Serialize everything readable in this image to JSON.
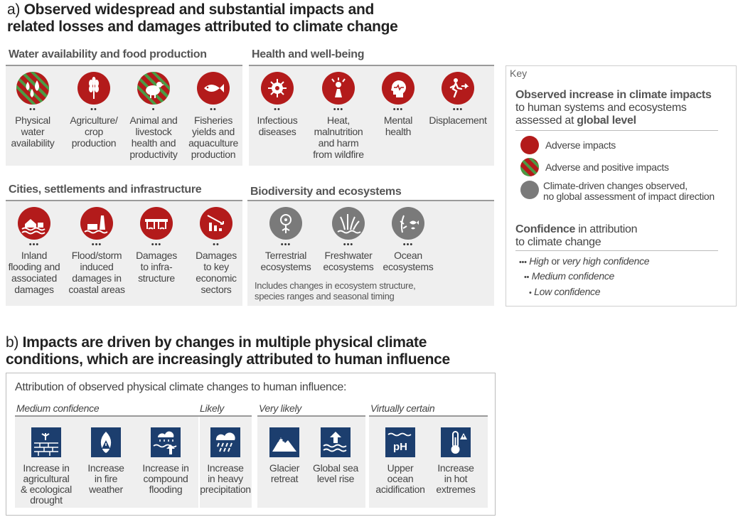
{
  "panel_a": {
    "prefix": "a)",
    "title_line1": "Observed widespread and substantial impacts and",
    "title_line2": "related losses and damages attributed to climate change"
  },
  "sections": {
    "water": {
      "title": "Water availability and food production",
      "items": [
        {
          "label": [
            "Physical",
            "water",
            "availability"
          ],
          "dots": "••",
          "style": "stripe",
          "icon": "water-drops-icon"
        },
        {
          "label": [
            "Agriculture/",
            "crop",
            "production"
          ],
          "dots": "••",
          "style": "red",
          "icon": "wheat-icon"
        },
        {
          "label": [
            "Animal and",
            "livestock",
            "health and",
            "productivity"
          ],
          "dots": "•",
          "style": "stripe",
          "icon": "chicken-icon"
        },
        {
          "label": [
            "Fisheries",
            "yields and",
            "aquaculture",
            "production"
          ],
          "dots": "••",
          "style": "red",
          "icon": "fish-icon"
        }
      ]
    },
    "health": {
      "title": "Health and well-being",
      "items": [
        {
          "label": [
            "Infectious",
            "diseases"
          ],
          "dots": "••",
          "style": "red",
          "icon": "virus-icon"
        },
        {
          "label": [
            "Heat,",
            "malnutrition",
            "and harm",
            "from wildfire"
          ],
          "dots": "•••",
          "style": "red",
          "icon": "heat-person-icon"
        },
        {
          "label": [
            "Mental",
            "health"
          ],
          "dots": "•••",
          "style": "red",
          "icon": "head-heart-icon"
        },
        {
          "label": [
            "Displacement"
          ],
          "dots": "•••",
          "style": "red",
          "icon": "running-person-icon"
        }
      ]
    },
    "cities": {
      "title": "Cities, settlements and infrastructure",
      "items": [
        {
          "label": [
            "Inland",
            "flooding and",
            "associated",
            "damages"
          ],
          "dots": "•••",
          "style": "red",
          "icon": "flooded-house-icon"
        },
        {
          "label": [
            "Flood/storm",
            "induced",
            "damages in",
            "coastal areas"
          ],
          "dots": "•••",
          "style": "red",
          "icon": "lighthouse-icon"
        },
        {
          "label": [
            "Damages",
            "to infra-",
            "structure"
          ],
          "dots": "•••",
          "style": "red",
          "icon": "bridge-icon"
        },
        {
          "label": [
            "Damages",
            "to key",
            "economic",
            "sectors"
          ],
          "dots": "••",
          "style": "red",
          "icon": "falling-chart-icon"
        }
      ]
    },
    "biodiversity": {
      "title": "Biodiversity and ecosystems",
      "items": [
        {
          "label": [
            "Terrestrial",
            "ecosystems"
          ],
          "dots": "•••",
          "style": "grey",
          "icon": "tree-icon"
        },
        {
          "label": [
            "Freshwater",
            "ecosystems"
          ],
          "dots": "•••",
          "style": "grey",
          "icon": "reeds-icon"
        },
        {
          "label": [
            "Ocean",
            "ecosystems"
          ],
          "dots": "•••",
          "style": "grey",
          "icon": "seaweed-fish-icon"
        }
      ],
      "note_line1": "Includes changes in ecosystem structure,",
      "note_line2": "species ranges and seasonal timing"
    }
  },
  "key": {
    "title": "Key",
    "heading_b1": "Observed increase in climate impacts",
    "heading_l2": "to human systems and ecosystems",
    "heading_l3a": "assessed at ",
    "heading_l3b": "global level",
    "adverse": "Adverse impacts",
    "adverse_positive": "Adverse and positive impacts",
    "grey_line1": "Climate-driven changes observed,",
    "grey_line2": "no global assessment of impact direction",
    "conf_b": "Confidence",
    "conf_rest": " in attribution",
    "conf_l2": "to climate change",
    "high_dots": "•••",
    "high_a": "High",
    "high_or": " or ",
    "high_b": "very high confidence",
    "medium_dots": "••",
    "medium": "Medium confidence",
    "low_dots": "•",
    "low": "Low confidence",
    "colors": {
      "adverse": "#b31b1b",
      "positive": "#4c9a44",
      "grey": "#7a7a7a"
    }
  },
  "panel_b": {
    "prefix": "b)",
    "title_line1": "Impacts are driven by changes in multiple physical climate",
    "title_line2": "conditions, which are increasingly attributed to human influence",
    "subtitle": "Attribution of observed physical climate changes to human influence:",
    "groups": [
      {
        "name": "Medium confidence",
        "items": [
          {
            "label": [
              "Increase in",
              "agricultural",
              "& ecological",
              "drought"
            ],
            "icon": "drought-icon"
          },
          {
            "label": [
              "Increase",
              "in fire",
              "weather"
            ],
            "icon": "fire-warning-icon"
          },
          {
            "label": [
              "Increase in",
              "compound",
              "flooding"
            ],
            "icon": "compound-flood-icon"
          }
        ]
      },
      {
        "name": "Likely",
        "items": [
          {
            "label": [
              "Increase",
              "in heavy",
              "precipitation"
            ],
            "icon": "heavy-rain-icon"
          }
        ]
      },
      {
        "name": "Very likely",
        "items": [
          {
            "label": [
              "Glacier",
              "retreat"
            ],
            "icon": "glacier-icon"
          },
          {
            "label": [
              "Global sea",
              "level rise"
            ],
            "icon": "sea-level-icon"
          }
        ]
      },
      {
        "name": "Virtually certain",
        "items": [
          {
            "label": [
              "Upper",
              "ocean",
              "acidification"
            ],
            "icon": "ph-icon",
            "ph": "pH"
          },
          {
            "label": [
              "Increase",
              "in hot",
              "extremes"
            ],
            "icon": "thermometer-icon"
          }
        ]
      }
    ],
    "icon_color": "#1c3e6e"
  }
}
